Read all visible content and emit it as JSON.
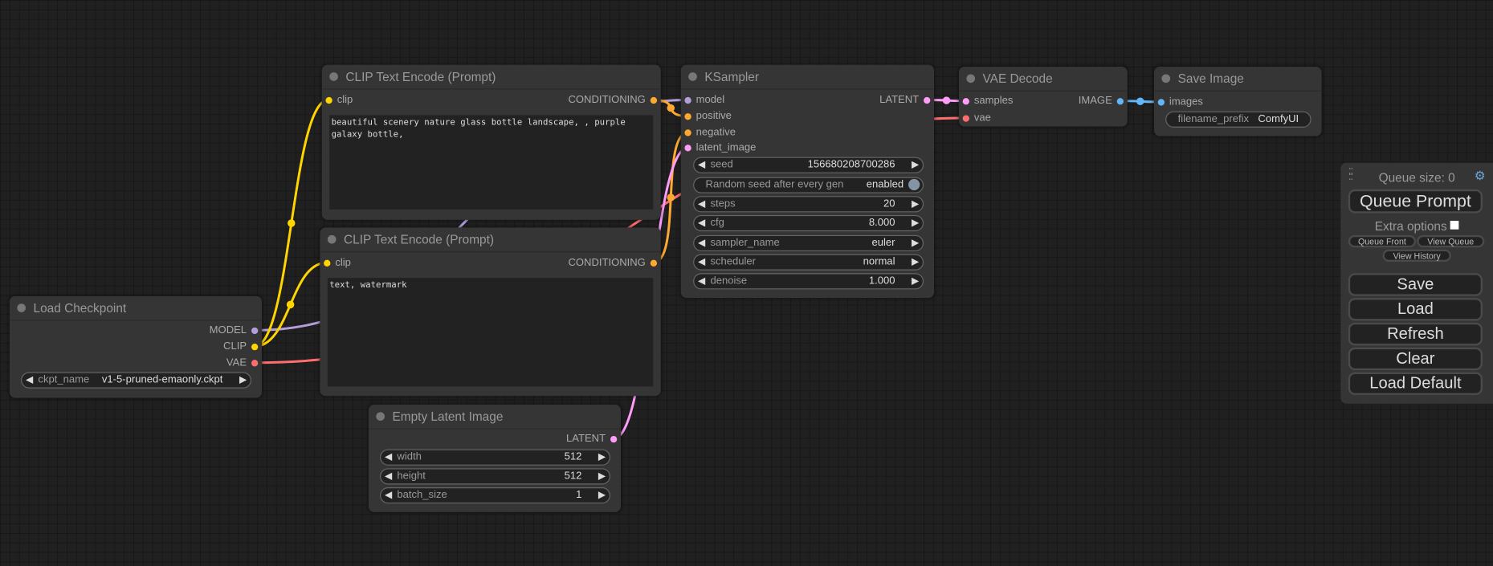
{
  "nodes": {
    "load_checkpoint": {
      "title": "Load Checkpoint",
      "inputs": [],
      "outputs": [
        "MODEL",
        "CLIP",
        "VAE"
      ],
      "widgets": [
        {
          "label": "ckpt_name",
          "value": "v1-5-pruned-emaonly.ckpt"
        }
      ]
    },
    "clip_positive": {
      "title": "CLIP Text Encode (Prompt)",
      "inputs": [
        "clip"
      ],
      "outputs": [
        "CONDITIONING"
      ],
      "text": "beautiful scenery nature glass bottle landscape, , purple galaxy bottle,"
    },
    "clip_negative": {
      "title": "CLIP Text Encode (Prompt)",
      "inputs": [
        "clip"
      ],
      "outputs": [
        "CONDITIONING"
      ],
      "text": "text, watermark"
    },
    "empty_latent": {
      "title": "Empty Latent Image",
      "inputs": [],
      "outputs": [
        "LATENT"
      ],
      "widgets": [
        {
          "label": "width",
          "value": "512"
        },
        {
          "label": "height",
          "value": "512"
        },
        {
          "label": "batch_size",
          "value": "1"
        }
      ]
    },
    "ksampler": {
      "title": "KSampler",
      "inputs": [
        "model",
        "positive",
        "negative",
        "latent_image"
      ],
      "outputs": [
        "LATENT"
      ],
      "widgets": [
        {
          "label": "seed",
          "value": "156680208700286"
        },
        {
          "label": "Random seed after every gen",
          "value": "enabled",
          "toggle": true
        },
        {
          "label": "steps",
          "value": "20"
        },
        {
          "label": "cfg",
          "value": "8.000"
        },
        {
          "label": "sampler_name",
          "value": "euler"
        },
        {
          "label": "scheduler",
          "value": "normal"
        },
        {
          "label": "denoise",
          "value": "1.000"
        }
      ]
    },
    "vae_decode": {
      "title": "VAE Decode",
      "inputs": [
        "samples",
        "vae"
      ],
      "outputs": [
        "IMAGE"
      ]
    },
    "save_image": {
      "title": "Save Image",
      "inputs": [
        "images"
      ],
      "outputs": [],
      "widgets": [
        {
          "label": "filename_prefix",
          "value": "ComfyUI",
          "plain": true
        }
      ]
    }
  },
  "type_colors": {
    "MODEL": "#b39ddb",
    "CLIP": "#ffd500",
    "VAE": "#ff6e6e",
    "CONDITIONING": "#ffa931",
    "LATENT": "#ff9cf9",
    "IMAGE": "#64b5f6"
  },
  "queue": {
    "queue_size": "Queue size: 0",
    "queue_prompt": "Queue Prompt",
    "extra_options": "Extra options",
    "extra_options_checked": false,
    "queue_front": "Queue Front",
    "view_queue": "View Queue",
    "view_history": "View History",
    "save": "Save",
    "load": "Load",
    "refresh": "Refresh",
    "clear": "Clear",
    "load_default": "Load Default",
    "settings_icon": "gear-icon"
  }
}
